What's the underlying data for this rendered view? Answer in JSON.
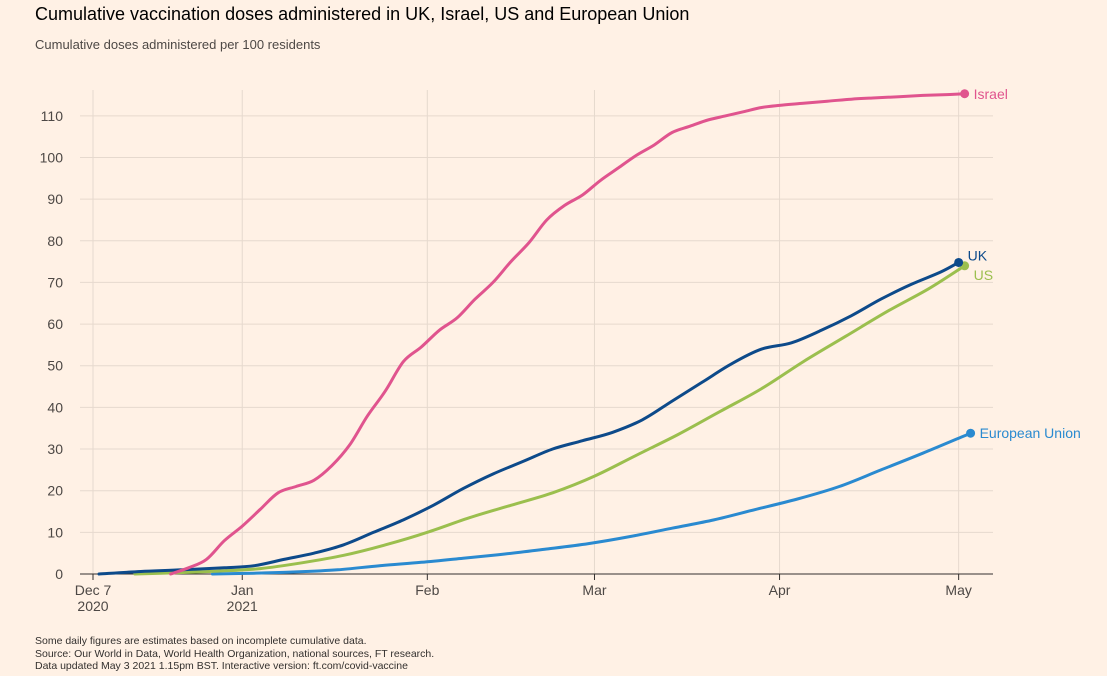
{
  "header": {
    "title": "Cumulative vaccination doses administered in UK, Israel, US and European Union",
    "subtitle": "Cumulative doses administered per 100 residents"
  },
  "footer": {
    "notes": [
      "Some daily figures are estimates based on incomplete cumulative data.",
      "Source: Our World in Data, World Health Organization, national sources, FT research.",
      "Data updated May 3 2021 1.15pm BST. Interactive version: ft.com/covid-vaccine"
    ]
  },
  "colors": {
    "background": "#fff1e5",
    "gridline": "#e6d9ce",
    "axis": "#33302e",
    "Israel": "#e0548e",
    "UK": "#0d4a8a",
    "US": "#9bbf4e",
    "European Union": "#2a8ad0"
  },
  "chart_data": {
    "type": "line",
    "title": "Cumulative vaccination doses administered in UK, Israel, US and European Union",
    "subtitle": "Cumulative doses administered per 100 residents",
    "xlabel": "",
    "ylabel": "",
    "xlim": [
      "2020-12-07",
      "2021-05-03"
    ],
    "ylim": [
      0,
      115
    ],
    "y_ticks": [
      0,
      10,
      20,
      30,
      40,
      50,
      60,
      70,
      80,
      90,
      100,
      110
    ],
    "x_ticks": [
      {
        "date": "2020-12-07",
        "label": "Dec 7",
        "sublabel": "2020"
      },
      {
        "date": "2021-01-01",
        "label": "Jan",
        "sublabel": "2021"
      },
      {
        "date": "2021-02-01",
        "label": "Feb",
        "sublabel": ""
      },
      {
        "date": "2021-03-01",
        "label": "Mar",
        "sublabel": ""
      },
      {
        "date": "2021-04-01",
        "label": "Apr",
        "sublabel": ""
      },
      {
        "date": "2021-05-01",
        "label": "May",
        "sublabel": ""
      }
    ],
    "grid": true,
    "legend": "direct labels at line ends",
    "series": [
      {
        "name": "Israel",
        "points": [
          [
            "2020-12-20",
            0.0
          ],
          [
            "2020-12-23",
            1.5
          ],
          [
            "2020-12-26",
            3.5
          ],
          [
            "2020-12-29",
            8.0
          ],
          [
            "2021-01-01",
            11.5
          ],
          [
            "2021-01-04",
            15.5
          ],
          [
            "2021-01-07",
            19.5
          ],
          [
            "2021-01-10",
            21.0
          ],
          [
            "2021-01-13",
            22.5
          ],
          [
            "2021-01-16",
            26.0
          ],
          [
            "2021-01-19",
            31.0
          ],
          [
            "2021-01-22",
            38.0
          ],
          [
            "2021-01-25",
            44.0
          ],
          [
            "2021-01-28",
            51.0
          ],
          [
            "2021-01-31",
            54.5
          ],
          [
            "2021-02-03",
            58.5
          ],
          [
            "2021-02-06",
            61.5
          ],
          [
            "2021-02-09",
            66.0
          ],
          [
            "2021-02-12",
            70.0
          ],
          [
            "2021-02-15",
            75.0
          ],
          [
            "2021-02-18",
            79.5
          ],
          [
            "2021-02-21",
            85.0
          ],
          [
            "2021-02-24",
            88.5
          ],
          [
            "2021-02-27",
            91.0
          ],
          [
            "2021-03-02",
            94.5
          ],
          [
            "2021-03-05",
            97.5
          ],
          [
            "2021-03-08",
            100.5
          ],
          [
            "2021-03-11",
            103.0
          ],
          [
            "2021-03-14",
            106.0
          ],
          [
            "2021-03-17",
            107.5
          ],
          [
            "2021-03-20",
            109.0
          ],
          [
            "2021-03-23",
            110.0
          ],
          [
            "2021-03-26",
            111.0
          ],
          [
            "2021-03-29",
            112.0
          ],
          [
            "2021-04-01",
            112.5
          ],
          [
            "2021-04-05",
            113.0
          ],
          [
            "2021-04-09",
            113.5
          ],
          [
            "2021-04-13",
            114.0
          ],
          [
            "2021-04-17",
            114.3
          ],
          [
            "2021-04-21",
            114.6
          ],
          [
            "2021-04-25",
            114.9
          ],
          [
            "2021-04-29",
            115.1
          ],
          [
            "2021-05-02",
            115.3
          ]
        ],
        "end_value": 115.3
      },
      {
        "name": "UK",
        "points": [
          [
            "2020-12-08",
            0.0
          ],
          [
            "2020-12-15",
            0.6
          ],
          [
            "2020-12-22",
            1.0
          ],
          [
            "2020-12-29",
            1.5
          ],
          [
            "2021-01-03",
            2.0
          ],
          [
            "2021-01-08",
            3.5
          ],
          [
            "2021-01-13",
            5.0
          ],
          [
            "2021-01-18",
            7.0
          ],
          [
            "2021-01-23",
            10.0
          ],
          [
            "2021-01-28",
            13.0
          ],
          [
            "2021-02-02",
            16.5
          ],
          [
            "2021-02-07",
            20.5
          ],
          [
            "2021-02-12",
            24.0
          ],
          [
            "2021-02-17",
            27.0
          ],
          [
            "2021-02-22",
            30.0
          ],
          [
            "2021-02-27",
            32.0
          ],
          [
            "2021-03-04",
            34.0
          ],
          [
            "2021-03-09",
            37.0
          ],
          [
            "2021-03-14",
            41.5
          ],
          [
            "2021-03-19",
            46.0
          ],
          [
            "2021-03-24",
            50.5
          ],
          [
            "2021-03-29",
            54.0
          ],
          [
            "2021-04-03",
            55.5
          ],
          [
            "2021-04-08",
            58.5
          ],
          [
            "2021-04-13",
            62.0
          ],
          [
            "2021-04-18",
            66.0
          ],
          [
            "2021-04-23",
            69.5
          ],
          [
            "2021-04-28",
            72.5
          ],
          [
            "2021-05-01",
            74.8
          ]
        ],
        "end_value": 74.8
      },
      {
        "name": "US",
        "points": [
          [
            "2020-12-14",
            0.0
          ],
          [
            "2020-12-21",
            0.3
          ],
          [
            "2020-12-28",
            0.7
          ],
          [
            "2021-01-04",
            1.3
          ],
          [
            "2021-01-11",
            2.7
          ],
          [
            "2021-01-18",
            4.5
          ],
          [
            "2021-01-25",
            7.0
          ],
          [
            "2021-02-01",
            10.0
          ],
          [
            "2021-02-08",
            13.5
          ],
          [
            "2021-02-15",
            16.5
          ],
          [
            "2021-02-22",
            19.5
          ],
          [
            "2021-03-01",
            23.5
          ],
          [
            "2021-03-08",
            28.5
          ],
          [
            "2021-03-15",
            33.5
          ],
          [
            "2021-03-22",
            39.0
          ],
          [
            "2021-03-29",
            44.5
          ],
          [
            "2021-04-05",
            51.0
          ],
          [
            "2021-04-12",
            57.0
          ],
          [
            "2021-04-19",
            63.0
          ],
          [
            "2021-04-26",
            68.5
          ],
          [
            "2021-05-02",
            74.0
          ]
        ],
        "end_value": 74.0
      },
      {
        "name": "European Union",
        "points": [
          [
            "2020-12-27",
            0.0
          ],
          [
            "2021-01-03",
            0.2
          ],
          [
            "2021-01-10",
            0.5
          ],
          [
            "2021-01-17",
            1.0
          ],
          [
            "2021-01-24",
            2.0
          ],
          [
            "2021-01-31",
            2.8
          ],
          [
            "2021-02-07",
            3.8
          ],
          [
            "2021-02-14",
            4.8
          ],
          [
            "2021-02-21",
            6.0
          ],
          [
            "2021-02-28",
            7.3
          ],
          [
            "2021-03-07",
            9.0
          ],
          [
            "2021-03-14",
            11.0
          ],
          [
            "2021-03-21",
            13.0
          ],
          [
            "2021-03-28",
            15.5
          ],
          [
            "2021-04-04",
            18.0
          ],
          [
            "2021-04-11",
            21.0
          ],
          [
            "2021-04-18",
            25.0
          ],
          [
            "2021-04-25",
            29.0
          ],
          [
            "2021-05-03",
            33.8
          ]
        ],
        "end_value": 33.8
      }
    ]
  }
}
